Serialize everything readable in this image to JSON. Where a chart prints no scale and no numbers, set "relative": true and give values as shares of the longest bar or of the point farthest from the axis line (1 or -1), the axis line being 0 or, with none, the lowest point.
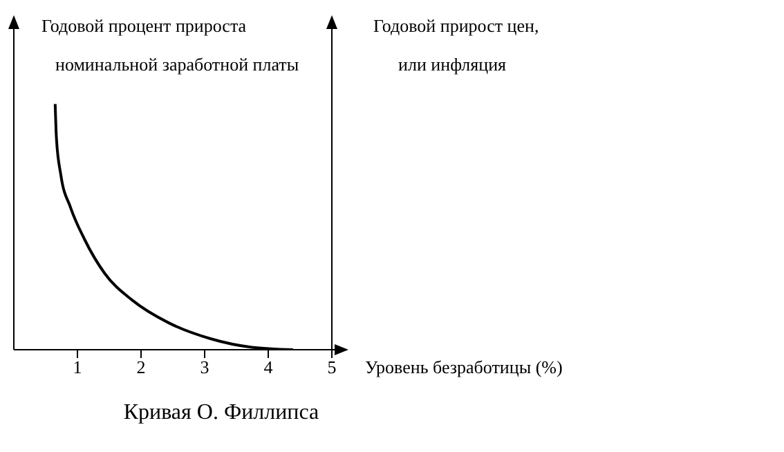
{
  "chart_data": {
    "type": "line",
    "title": "Кривая О. Филлипса",
    "xlabel": "Уровень безработицы (%)",
    "ylabel": "Годовой процент прироста\nноминальной заработной платы",
    "y2label": "Годовой прирост цен,\nили инфляция",
    "relative": true,
    "xlim": [
      0,
      5
    ],
    "xticks": [
      1,
      2,
      3,
      4,
      5
    ],
    "grid": false,
    "legend": false,
    "marker": "none",
    "line_style": "solid",
    "series": [
      {
        "color": "#000000",
        "x": [
          0.65,
          0.67,
          0.74,
          0.89,
          1.11,
          1.43,
          1.87,
          2.43,
          3.09,
          3.74,
          4.39
        ],
        "values": [
          1,
          0.86,
          0.71,
          0.58,
          0.45,
          0.31,
          0.2,
          0.11,
          0.045,
          0.01,
          0
        ]
      }
    ]
  }
}
